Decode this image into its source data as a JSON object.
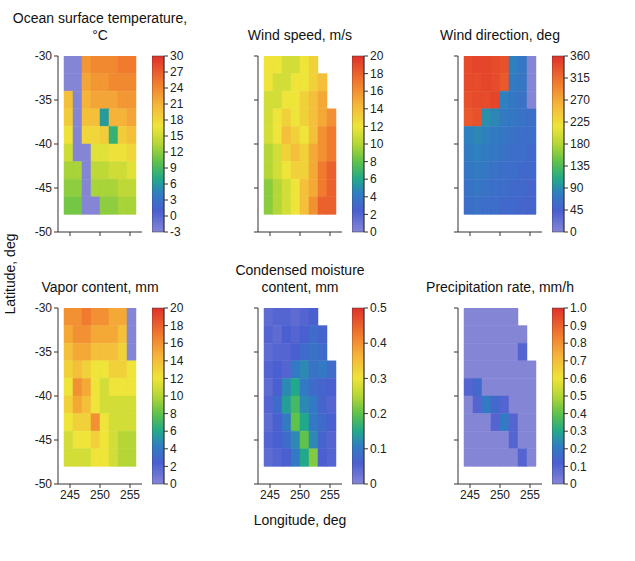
{
  "xlabel": "Longitude, deg",
  "ylabel": "Latitude, deg",
  "chart_data": [
    {
      "type": "heatmap",
      "title": "Ocean surface temperature, °C",
      "xlim": [
        243,
        257
      ],
      "xticks": [
        245,
        250,
        255
      ],
      "ylim": [
        -50,
        -30
      ],
      "yticks": [
        -30,
        -35,
        -40,
        -45,
        -50
      ],
      "tick_labels": "y",
      "x_edges": [
        244,
        245.5,
        247,
        248.5,
        250,
        251.5,
        253,
        254.5,
        256
      ],
      "y_edges": [
        -30,
        -32,
        -34,
        -36,
        -38,
        -40,
        -42,
        -44,
        -46,
        -48
      ],
      "cells": [
        [
          -3,
          -3,
          23,
          24,
          24,
          24,
          25,
          25
        ],
        [
          -3,
          -3,
          22,
          23,
          23,
          24,
          24,
          24
        ],
        [
          20,
          -3,
          21,
          22,
          22,
          22,
          23,
          23
        ],
        [
          19,
          -3,
          20,
          20,
          6,
          21,
          21,
          22
        ],
        [
          17,
          -3,
          18,
          18,
          19,
          8,
          19,
          20
        ],
        [
          15,
          -3,
          -3,
          16,
          16,
          17,
          17,
          18
        ],
        [
          13,
          13,
          -3,
          14,
          14,
          15,
          15,
          16
        ],
        [
          12,
          12,
          -3,
          13,
          13,
          13,
          14,
          14
        ],
        [
          11,
          11,
          -3,
          -3,
          12,
          12,
          13,
          13
        ]
      ],
      "colorbar": {
        "range": [
          -3,
          30
        ],
        "ticks": [
          -3,
          0,
          3,
          6,
          9,
          12,
          15,
          18,
          21,
          24,
          27,
          30
        ]
      }
    },
    {
      "type": "heatmap",
      "title": "Wind speed, m/s",
      "xlim": [
        243,
        257
      ],
      "xticks": [
        245,
        250,
        255
      ],
      "ylim": [
        -50,
        -30
      ],
      "yticks": [
        -30,
        -35,
        -40,
        -45,
        -50
      ],
      "tick_labels": false,
      "x_edges": [
        244,
        245.5,
        247,
        248.5,
        250,
        251.5,
        253,
        254.5,
        256
      ],
      "y_edges": [
        -30,
        -32,
        -34,
        -36,
        -38,
        -40,
        -42,
        -44,
        -46,
        -48
      ],
      "cells": [
        [
          12,
          12,
          11,
          11,
          12,
          13,
          null,
          null
        ],
        [
          12,
          11,
          11,
          12,
          12,
          13,
          14,
          null
        ],
        [
          11,
          11,
          12,
          12,
          13,
          14,
          15,
          null
        ],
        [
          11,
          12,
          13,
          12,
          13,
          14,
          15,
          16
        ],
        [
          11,
          12,
          14,
          13,
          12,
          14,
          16,
          17
        ],
        [
          10,
          11,
          13,
          14,
          13,
          15,
          16,
          17
        ],
        [
          10,
          11,
          12,
          13,
          13,
          15,
          17,
          18
        ],
        [
          9,
          10,
          11,
          12,
          14,
          15,
          17,
          18
        ],
        [
          9,
          10,
          11,
          12,
          14,
          16,
          18,
          18
        ]
      ],
      "colorbar": {
        "range": [
          0,
          20
        ],
        "ticks": [
          0,
          2,
          4,
          6,
          8,
          10,
          12,
          14,
          16,
          18,
          20
        ]
      }
    },
    {
      "type": "heatmap",
      "title": "Wind direction, deg",
      "xlim": [
        243,
        257
      ],
      "xticks": [
        245,
        250,
        255
      ],
      "ylim": [
        -50,
        -30
      ],
      "yticks": [
        -30,
        -35,
        -40,
        -45,
        -50
      ],
      "tick_labels": false,
      "x_edges": [
        244,
        245.5,
        247,
        248.5,
        250,
        251.5,
        253,
        254.5,
        256
      ],
      "y_edges": [
        -30,
        -32,
        -34,
        -36,
        -38,
        -40,
        -42,
        -44,
        -46,
        -48
      ],
      "cells": [
        [
          340,
          345,
          345,
          340,
          335,
          80,
          70,
          0
        ],
        [
          340,
          340,
          345,
          340,
          330,
          75,
          70,
          0
        ],
        [
          335,
          340,
          340,
          345,
          80,
          70,
          65,
          0
        ],
        [
          330,
          335,
          90,
          85,
          75,
          70,
          65,
          60
        ],
        [
          80,
          85,
          80,
          75,
          70,
          65,
          60,
          60
        ],
        [
          75,
          80,
          75,
          70,
          65,
          60,
          60,
          55
        ],
        [
          70,
          75,
          70,
          65,
          60,
          60,
          55,
          55
        ],
        [
          65,
          70,
          65,
          60,
          60,
          55,
          55,
          50
        ],
        [
          60,
          65,
          60,
          60,
          55,
          55,
          50,
          50
        ]
      ],
      "colorbar": {
        "range": [
          0,
          360
        ],
        "ticks": [
          0,
          45,
          90,
          135,
          180,
          225,
          270,
          315,
          360
        ]
      }
    },
    {
      "type": "heatmap",
      "title": "Vapor content, mm",
      "xlim": [
        243,
        257
      ],
      "xticks": [
        245,
        250,
        255
      ],
      "ylim": [
        -50,
        -30
      ],
      "yticks": [
        -30,
        -35,
        -40,
        -45,
        -50
      ],
      "x_edges": [
        244,
        245.5,
        247,
        248.5,
        250,
        251.5,
        253,
        254.5,
        256
      ],
      "y_edges": [
        -30,
        -32,
        -34,
        -36,
        -38,
        -40,
        -42,
        -44,
        -46,
        -48
      ],
      "cells": [
        [
          16,
          16,
          17,
          16,
          16,
          15,
          15,
          0
        ],
        [
          15,
          16,
          16,
          15,
          15,
          15,
          14,
          0
        ],
        [
          14,
          15,
          15,
          14,
          14,
          14,
          13,
          0
        ],
        [
          13,
          14,
          13,
          12,
          12,
          13,
          13,
          12
        ],
        [
          12,
          16,
          15,
          12,
          11,
          12,
          12,
          12
        ],
        [
          13,
          15,
          14,
          12,
          11,
          11,
          11,
          11
        ],
        [
          12,
          13,
          13,
          16,
          12,
          11,
          11,
          11
        ],
        [
          11,
          12,
          12,
          13,
          12,
          11,
          10,
          10
        ],
        [
          11,
          11,
          11,
          12,
          12,
          11,
          10,
          10
        ]
      ],
      "colorbar": {
        "range": [
          0,
          20
        ],
        "ticks": [
          0,
          2,
          4,
          6,
          8,
          10,
          12,
          14,
          16,
          18,
          20
        ]
      }
    },
    {
      "type": "heatmap",
      "title": "Condensed moisture content, mm",
      "xlim": [
        243,
        257
      ],
      "xticks": [
        245,
        250,
        255
      ],
      "ylim": [
        -50,
        -30
      ],
      "yticks": [
        -30,
        -35,
        -40,
        -45,
        -50
      ],
      "tick_labels": "x",
      "x_edges": [
        244,
        245.5,
        247,
        248.5,
        250,
        251.5,
        253,
        254.5,
        256
      ],
      "y_edges": [
        -30,
        -32,
        -34,
        -36,
        -38,
        -40,
        -42,
        -44,
        -46,
        -48
      ],
      "cells": [
        [
          0.04,
          0.05,
          0.05,
          0.04,
          0.05,
          0.06,
          null,
          null
        ],
        [
          0.05,
          0.04,
          0.06,
          0.05,
          0.06,
          0.08,
          0.07,
          null
        ],
        [
          0.04,
          0.05,
          0.05,
          0.06,
          0.08,
          0.09,
          0.08,
          null
        ],
        [
          0.05,
          0.06,
          0.05,
          0.1,
          0.12,
          0.09,
          0.1,
          0.08
        ],
        [
          0.04,
          0.06,
          0.12,
          0.15,
          0.1,
          0.08,
          0.07,
          0.06
        ],
        [
          0.05,
          0.08,
          0.14,
          0.18,
          0.12,
          0.1,
          0.07,
          0.05
        ],
        [
          0.04,
          0.06,
          0.1,
          0.2,
          0.15,
          0.1,
          0.08,
          0.06
        ],
        [
          0.05,
          0.06,
          0.08,
          0.12,
          0.2,
          0.12,
          0.07,
          0.05
        ],
        [
          0.04,
          0.05,
          0.06,
          0.1,
          0.15,
          0.22,
          0.06,
          0.05
        ]
      ],
      "colorbar": {
        "range": [
          0,
          0.5
        ],
        "ticks": [
          0,
          0.1,
          0.2,
          0.3,
          0.4,
          0.5
        ]
      }
    },
    {
      "type": "heatmap",
      "title": "Precipitation rate, mm/h",
      "xlim": [
        243,
        257
      ],
      "xticks": [
        245,
        250,
        255
      ],
      "ylim": [
        -50,
        -30
      ],
      "yticks": [
        -30,
        -35,
        -40,
        -45,
        -50
      ],
      "tick_labels": "x",
      "x_edges": [
        244,
        245.5,
        247,
        248.5,
        250,
        251.5,
        253,
        254.5,
        256
      ],
      "y_edges": [
        -30,
        -32,
        -34,
        -36,
        -38,
        -40,
        -42,
        -44,
        -46,
        -48
      ],
      "cells": [
        [
          0,
          0,
          0,
          0,
          0,
          0,
          null,
          null
        ],
        [
          0,
          0,
          0,
          0,
          0,
          0,
          0,
          null
        ],
        [
          0,
          0,
          0,
          0,
          0,
          0,
          0.1,
          null
        ],
        [
          0,
          0,
          0,
          0,
          0,
          0,
          0,
          0
        ],
        [
          0.1,
          0.15,
          0,
          0,
          0,
          0,
          0,
          0
        ],
        [
          0,
          0.1,
          0.2,
          0.15,
          0.1,
          0,
          0,
          0
        ],
        [
          0,
          0,
          0,
          0.1,
          0.2,
          0.1,
          0,
          0
        ],
        [
          0,
          0,
          0,
          0,
          0,
          0.1,
          0,
          0
        ],
        [
          0,
          0,
          0,
          0,
          0,
          0,
          0.1,
          0
        ]
      ],
      "colorbar": {
        "range": [
          0,
          1
        ],
        "ticks": [
          0,
          0.1,
          0.2,
          0.3,
          0.4,
          0.5,
          0.6,
          0.7,
          0.8,
          0.9,
          {
            "value": 1,
            "label": "1.0"
          }
        ]
      }
    }
  ]
}
